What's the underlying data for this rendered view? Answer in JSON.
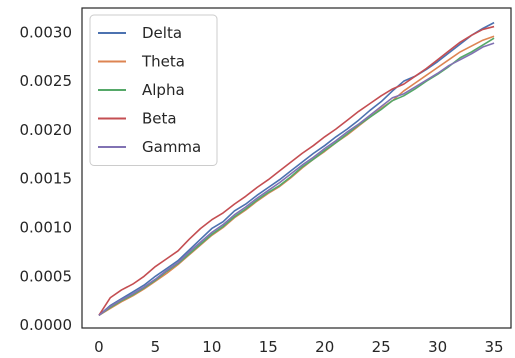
{
  "chart_data": {
    "type": "line",
    "title": "",
    "xlabel": "",
    "ylabel": "",
    "xlim": [
      -1.5,
      36.5
    ],
    "ylim": [
      -3e-05,
      0.00325
    ],
    "x_ticks": [
      0,
      5,
      10,
      15,
      20,
      25,
      30,
      35
    ],
    "x_tick_labels": [
      "0",
      "5",
      "10",
      "15",
      "20",
      "25",
      "30",
      "35"
    ],
    "y_ticks": [
      0.0,
      0.0005,
      0.001,
      0.0015,
      0.002,
      0.0025,
      0.003
    ],
    "y_tick_labels": [
      "0.0000",
      "0.0005",
      "0.0010",
      "0.0015",
      "0.0020",
      "0.0025",
      "0.0030"
    ],
    "grid": false,
    "legend_position": "top-left",
    "x": [
      0,
      1,
      2,
      3,
      4,
      5,
      6,
      7,
      8,
      9,
      10,
      11,
      12,
      13,
      14,
      15,
      16,
      17,
      18,
      19,
      20,
      21,
      22,
      23,
      24,
      25,
      26,
      27,
      28,
      29,
      30,
      31,
      32,
      33,
      34,
      35
    ],
    "series": [
      {
        "name": "Delta",
        "color": "#4c72b0",
        "values": [
          0.0001,
          0.0002,
          0.00027,
          0.00034,
          0.00041,
          0.0005,
          0.00058,
          0.00066,
          0.00077,
          0.00088,
          0.00099,
          0.00106,
          0.00117,
          0.00124,
          0.00133,
          0.00141,
          0.00149,
          0.00158,
          0.00167,
          0.00176,
          0.00184,
          0.00193,
          0.00201,
          0.0021,
          0.0022,
          0.00229,
          0.0024,
          0.0025,
          0.00255,
          0.00262,
          0.0027,
          0.00279,
          0.00288,
          0.00297,
          0.00304,
          0.0031
        ]
      },
      {
        "name": "Theta",
        "color": "#dd8452",
        "values": [
          0.0001,
          0.00017,
          0.00024,
          0.0003,
          0.00037,
          0.00045,
          0.00053,
          0.00062,
          0.00072,
          0.00082,
          0.00092,
          0.001,
          0.0011,
          0.00118,
          0.00127,
          0.00135,
          0.00142,
          0.00151,
          0.00161,
          0.0017,
          0.00178,
          0.00187,
          0.00195,
          0.00204,
          0.00213,
          0.00222,
          0.0023,
          0.0024,
          0.00248,
          0.00256,
          0.00264,
          0.00272,
          0.0028,
          0.00286,
          0.00292,
          0.00296
        ]
      },
      {
        "name": "Alpha",
        "color": "#55a868",
        "values": [
          0.0001,
          0.00018,
          0.00025,
          0.00031,
          0.00038,
          0.00046,
          0.00055,
          0.00063,
          0.00073,
          0.00083,
          0.00093,
          0.00101,
          0.00111,
          0.00119,
          0.00128,
          0.00136,
          0.00143,
          0.00152,
          0.00162,
          0.0017,
          0.00179,
          0.00187,
          0.00196,
          0.00205,
          0.00213,
          0.00221,
          0.0023,
          0.00235,
          0.00242,
          0.0025,
          0.00257,
          0.00265,
          0.00274,
          0.0028,
          0.00287,
          0.00294
        ]
      },
      {
        "name": "Beta",
        "color": "#c44e52",
        "values": [
          0.0001,
          0.00028,
          0.00036,
          0.00042,
          0.0005,
          0.0006,
          0.00068,
          0.00076,
          0.00088,
          0.00099,
          0.00108,
          0.00115,
          0.00124,
          0.00132,
          0.00141,
          0.00149,
          0.00158,
          0.00167,
          0.00176,
          0.00184,
          0.00193,
          0.00201,
          0.0021,
          0.00219,
          0.00227,
          0.00235,
          0.00242,
          0.00247,
          0.00255,
          0.00263,
          0.00272,
          0.00281,
          0.0029,
          0.00297,
          0.00303,
          0.00306
        ]
      },
      {
        "name": "Gamma",
        "color": "#8172b3",
        "values": [
          0.0001,
          0.00019,
          0.00026,
          0.00032,
          0.00039,
          0.00047,
          0.00056,
          0.00064,
          0.00075,
          0.00085,
          0.00095,
          0.00103,
          0.00113,
          0.00121,
          0.0013,
          0.00138,
          0.00146,
          0.00155,
          0.00164,
          0.00172,
          0.00181,
          0.00189,
          0.00198,
          0.00206,
          0.00215,
          0.00224,
          0.00233,
          0.00237,
          0.00244,
          0.00251,
          0.00258,
          0.00266,
          0.00272,
          0.00278,
          0.00285,
          0.00289
        ]
      }
    ]
  }
}
